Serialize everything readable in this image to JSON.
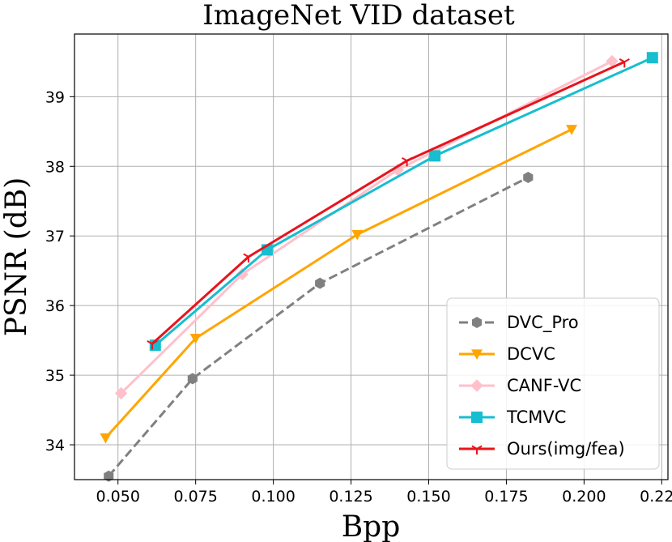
{
  "chart_data": {
    "type": "line",
    "title": "ImageNet VID dataset",
    "xlabel": "Bpp",
    "ylabel": "PSNR (dB)",
    "xlim": [
      0.036,
      0.227
    ],
    "ylim": [
      33.5,
      39.9
    ],
    "xticks": [
      0.05,
      0.075,
      0.1,
      0.125,
      0.15,
      0.175,
      0.2,
      0.225
    ],
    "xtick_labels": [
      "0.050",
      "0.075",
      "0.100",
      "0.125",
      "0.150",
      "0.175",
      "0.200",
      "0.225"
    ],
    "yticks": [
      34,
      35,
      36,
      37,
      38,
      39
    ],
    "ytick_labels": [
      "34",
      "35",
      "36",
      "37",
      "38",
      "39"
    ],
    "grid": true,
    "legend_position": "bottom-right",
    "series": [
      {
        "name": "DVC_Pro",
        "color": "#808080",
        "marker": "hexagon",
        "dashed": true,
        "x": [
          0.047,
          0.074,
          0.115,
          0.182
        ],
        "y": [
          33.55,
          34.95,
          36.32,
          37.84
        ]
      },
      {
        "name": "DCVC",
        "color": "#ffa500",
        "marker": "triangle-down",
        "dashed": false,
        "x": [
          0.046,
          0.075,
          0.127,
          0.196
        ],
        "y": [
          34.1,
          35.53,
          37.02,
          38.53
        ]
      },
      {
        "name": "CANF-VC",
        "color": "#ffc0cb",
        "marker": "diamond",
        "dashed": false,
        "x": [
          0.051,
          0.09,
          0.14,
          0.209
        ],
        "y": [
          34.74,
          36.45,
          37.95,
          39.51
        ]
      },
      {
        "name": "TCMVC",
        "color": "#17becf",
        "marker": "square",
        "dashed": false,
        "x": [
          0.062,
          0.098,
          0.152,
          0.222
        ],
        "y": [
          35.43,
          36.8,
          38.15,
          39.56
        ]
      },
      {
        "name": "Ours(img/fea)",
        "color": "#e8141c",
        "marker": "tri-down",
        "dashed": false,
        "x": [
          0.061,
          0.092,
          0.143,
          0.213
        ],
        "y": [
          35.45,
          36.7,
          38.08,
          39.5
        ]
      }
    ]
  }
}
